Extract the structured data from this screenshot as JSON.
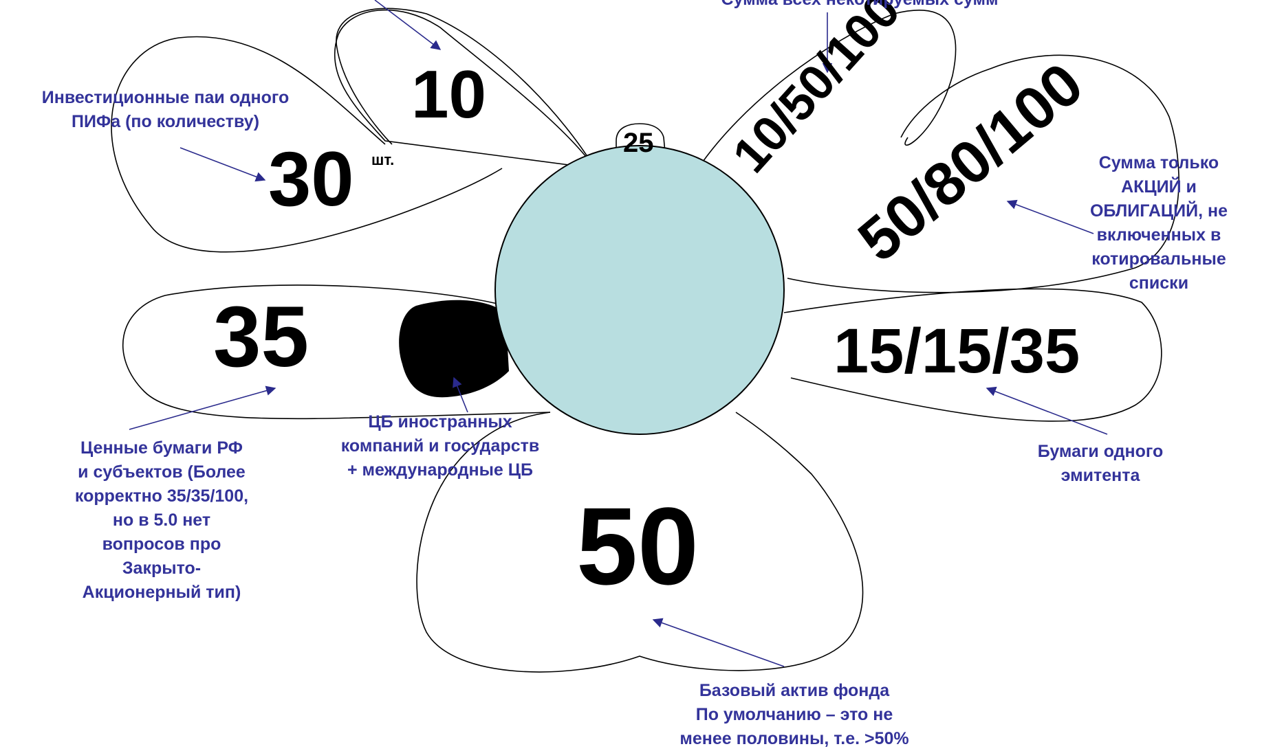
{
  "colors": {
    "center": "#b8dee0",
    "label": "#33339a",
    "outline": "#000000",
    "arrow": "#2a2a8c"
  },
  "petals": {
    "top_left": "10",
    "pif": "30",
    "pif_unit": "шт.",
    "top_right": "10/50/100",
    "right_upper": "50/80/100",
    "right": "15/15/35",
    "left": "35",
    "bottom": "50",
    "small_tab": "25"
  },
  "labels": {
    "top_cut": "Сумма всех некотируемых сумм",
    "pif_line1": "Инвестиционные паи одного",
    "pif_line2": "ПИФа (по количеству)",
    "shares_bonds": [
      "Сумма только",
      "АКЦИЙ и",
      "ОБЛИГАЦИЙ, не",
      "включенных в",
      "котировальные",
      "списки"
    ],
    "issuer": [
      "Бумаги одного",
      "эмитента"
    ],
    "foreign": [
      "ЦБ иностранных",
      "компаний и государств",
      "+ международные ЦБ"
    ],
    "rf_securities": [
      "Ценные бумаги РФ",
      "и субъектов (Более",
      "корректно 35/35/100,",
      "но в 5.0 нет",
      "вопросов про",
      "Закрыто-",
      "Акционерный тип)"
    ],
    "base_asset": [
      "Базовый актив фонда",
      "По умолчанию – это не",
      "менее половины, т.е. >50%"
    ]
  }
}
